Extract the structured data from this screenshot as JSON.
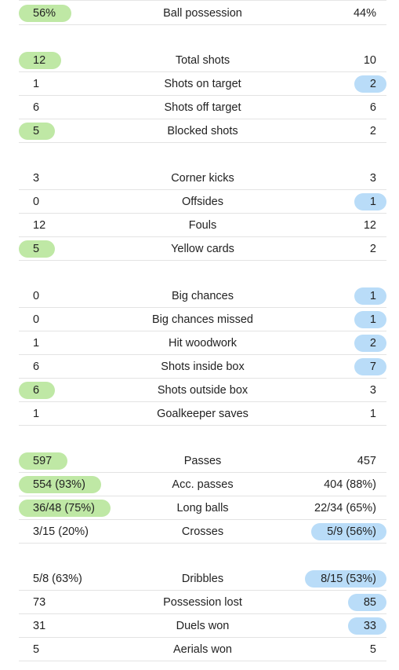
{
  "colors": {
    "home_highlight": "#bfe8a5",
    "away_highlight": "#b9dcf8",
    "divider": "#e3e3e3"
  },
  "groups": [
    {
      "rows": [
        {
          "label": "Ball possession",
          "home": "56%",
          "away": "44%",
          "highlight": "home"
        }
      ]
    },
    {
      "rows": [
        {
          "label": "Total shots",
          "home": "12",
          "away": "10",
          "highlight": "home"
        },
        {
          "label": "Shots on target",
          "home": "1",
          "away": "2",
          "highlight": "away"
        },
        {
          "label": "Shots off target",
          "home": "6",
          "away": "6",
          "highlight": "none"
        },
        {
          "label": "Blocked shots",
          "home": "5",
          "away": "2",
          "highlight": "home"
        }
      ]
    },
    {
      "rows": [
        {
          "label": "Corner kicks",
          "home": "3",
          "away": "3",
          "highlight": "none"
        },
        {
          "label": "Offsides",
          "home": "0",
          "away": "1",
          "highlight": "away"
        },
        {
          "label": "Fouls",
          "home": "12",
          "away": "12",
          "highlight": "none"
        },
        {
          "label": "Yellow cards",
          "home": "5",
          "away": "2",
          "highlight": "home"
        }
      ]
    },
    {
      "rows": [
        {
          "label": "Big chances",
          "home": "0",
          "away": "1",
          "highlight": "away"
        },
        {
          "label": "Big chances missed",
          "home": "0",
          "away": "1",
          "highlight": "away"
        },
        {
          "label": "Hit woodwork",
          "home": "1",
          "away": "2",
          "highlight": "away"
        },
        {
          "label": "Shots inside box",
          "home": "6",
          "away": "7",
          "highlight": "away"
        },
        {
          "label": "Shots outside box",
          "home": "6",
          "away": "3",
          "highlight": "home"
        },
        {
          "label": "Goalkeeper saves",
          "home": "1",
          "away": "1",
          "highlight": "none"
        }
      ]
    },
    {
      "rows": [
        {
          "label": "Passes",
          "home": "597",
          "away": "457",
          "highlight": "home"
        },
        {
          "label": "Acc. passes",
          "home": "554 (93%)",
          "away": "404 (88%)",
          "highlight": "home"
        },
        {
          "label": "Long balls",
          "home": "36/48 (75%)",
          "away": "22/34 (65%)",
          "highlight": "home"
        },
        {
          "label": "Crosses",
          "home": "3/15 (20%)",
          "away": "5/9 (56%)",
          "highlight": "away"
        }
      ]
    },
    {
      "rows": [
        {
          "label": "Dribbles",
          "home": "5/8 (63%)",
          "away": "8/15 (53%)",
          "highlight": "away"
        },
        {
          "label": "Possession lost",
          "home": "73",
          "away": "85",
          "highlight": "away"
        },
        {
          "label": "Duels won",
          "home": "31",
          "away": "33",
          "highlight": "away"
        },
        {
          "label": "Aerials won",
          "home": "5",
          "away": "5",
          "highlight": "none"
        }
      ]
    }
  ]
}
